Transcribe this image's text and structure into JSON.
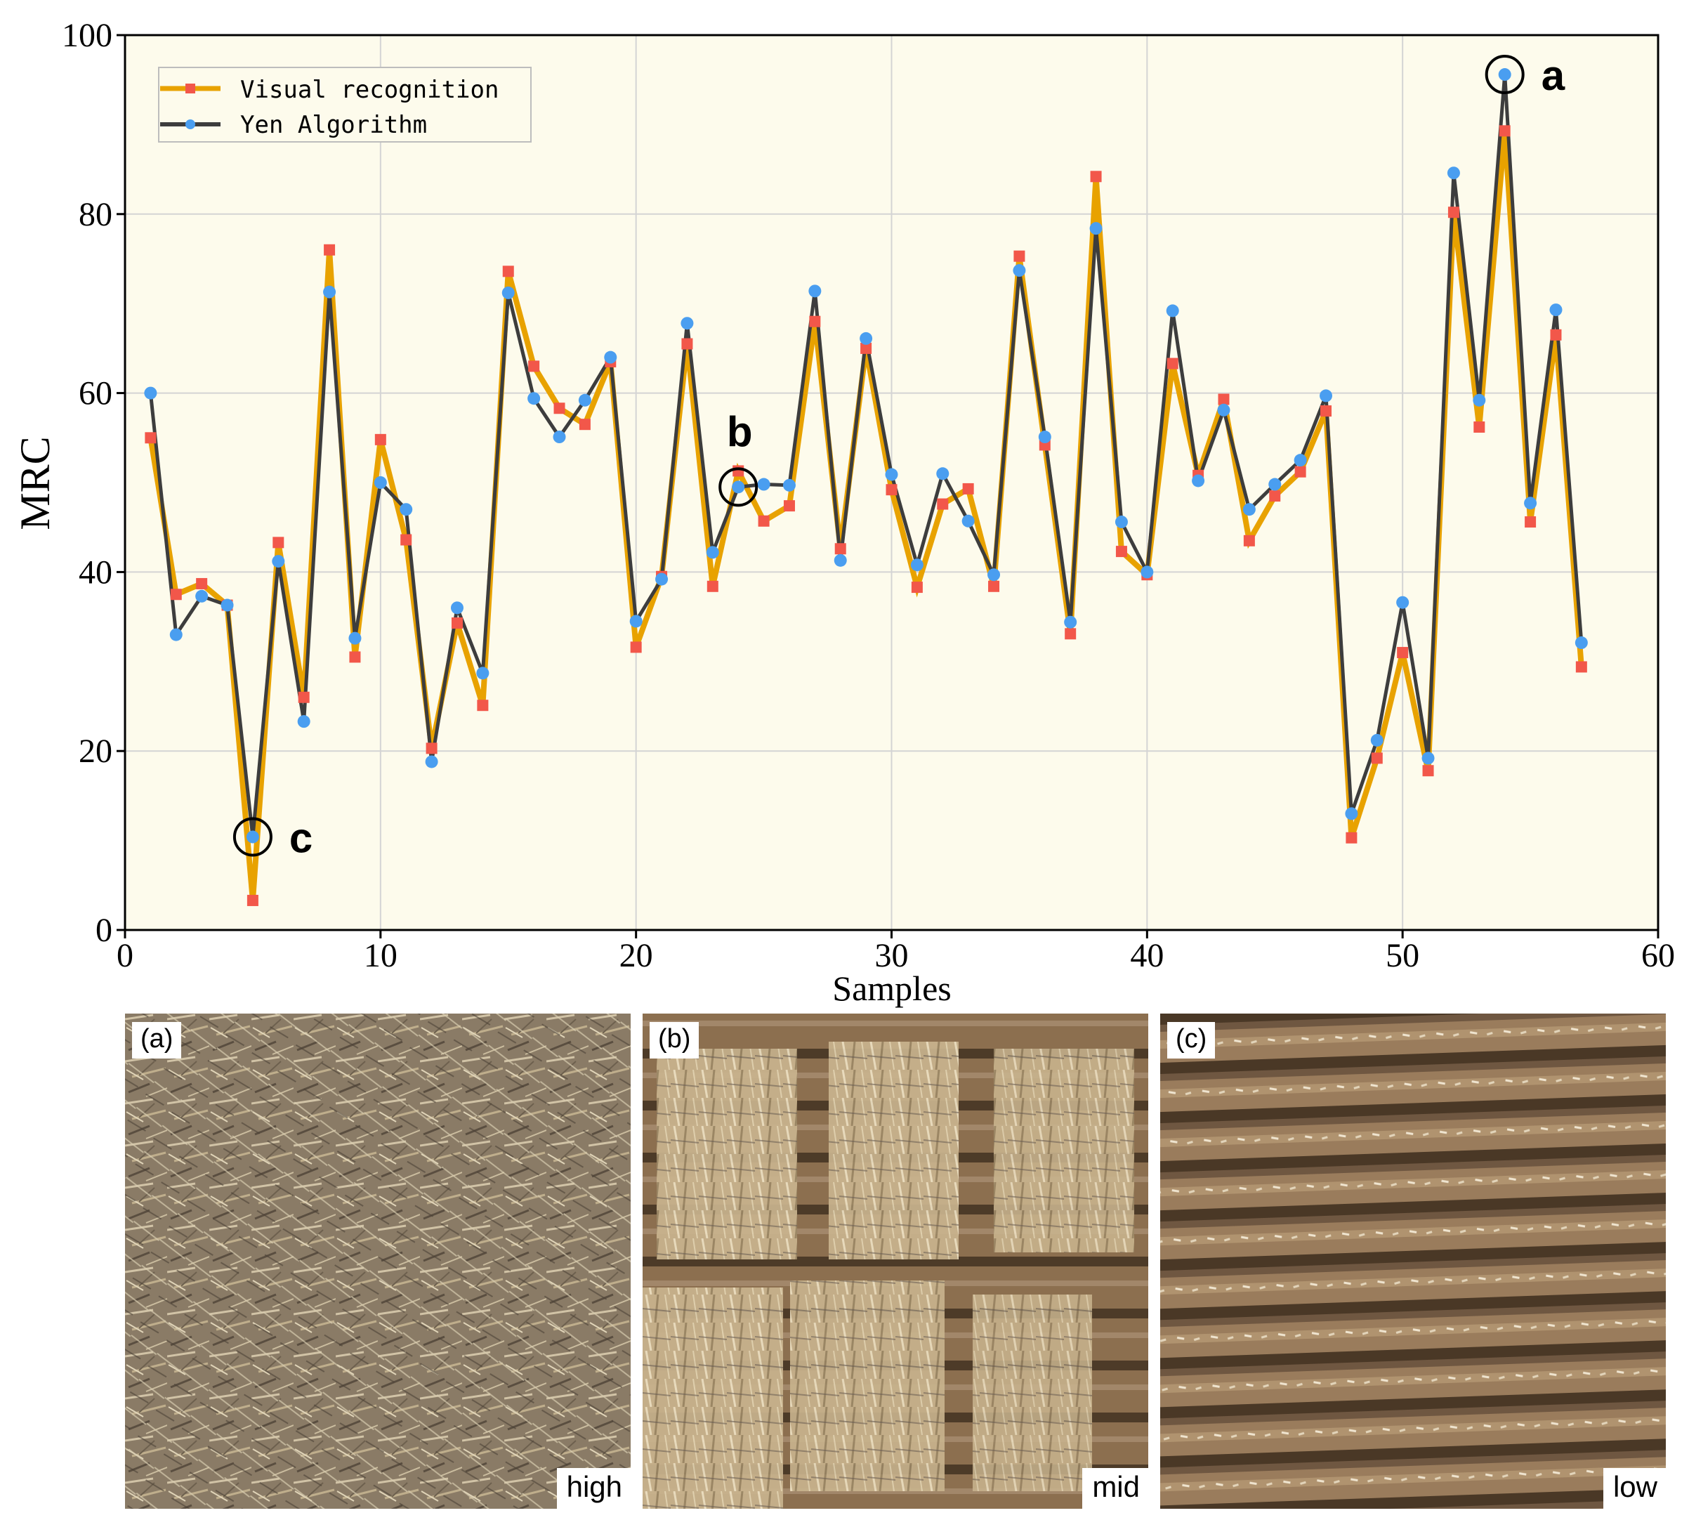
{
  "chart_data": {
    "type": "line",
    "xlabel": "Samples",
    "ylabel": "MRC",
    "xlim": [
      0,
      60
    ],
    "ylim": [
      0,
      100
    ],
    "xticks": [
      0,
      10,
      20,
      30,
      40,
      50,
      60
    ],
    "yticks": [
      0,
      20,
      40,
      60,
      80,
      100
    ],
    "grid": true,
    "legend_position": "top-left",
    "x": [
      1,
      2,
      3,
      4,
      5,
      6,
      7,
      8,
      9,
      10,
      11,
      12,
      13,
      14,
      15,
      16,
      17,
      18,
      19,
      20,
      21,
      22,
      23,
      24,
      25,
      26,
      27,
      28,
      29,
      30,
      31,
      32,
      33,
      34,
      35,
      36,
      37,
      38,
      39,
      40,
      41,
      42,
      43,
      44,
      45,
      46,
      47,
      48,
      49,
      50,
      51,
      52,
      53,
      54,
      55,
      56,
      57
    ],
    "series": [
      {
        "name": "Visual recognition",
        "color": "#e8a200",
        "marker_color": "#f2574a",
        "marker": "square",
        "values": [
          55,
          37.5,
          38.7,
          36.3,
          3.3,
          43.3,
          26,
          76,
          30.5,
          54.8,
          43.6,
          20.3,
          34.3,
          25.1,
          73.6,
          63,
          58.3,
          56.5,
          63.5,
          31.6,
          39.5,
          65.5,
          38.4,
          51.3,
          45.7,
          47.4,
          68,
          42.6,
          65,
          49.2,
          38.3,
          47.6,
          49.3,
          38.4,
          75.3,
          54.2,
          33.1,
          84.2,
          42.3,
          39.7,
          63.3,
          50.8,
          59.3,
          43.5,
          48.5,
          51.2,
          58,
          10.3,
          19.2,
          31,
          17.8,
          80.2,
          56.2,
          89.3,
          45.6,
          66.5,
          29.4
        ]
      },
      {
        "name": "Yen Algorithm",
        "color": "#3d3d3d",
        "marker_color": "#4a9ef0",
        "marker": "circle",
        "values": [
          60,
          33,
          37.3,
          36.3,
          10.4,
          41.2,
          23.3,
          71.3,
          32.6,
          50,
          47,
          18.8,
          36,
          28.7,
          71.2,
          59.4,
          55.1,
          59.2,
          64,
          34.5,
          39.2,
          67.8,
          42.2,
          49.5,
          49.8,
          49.7,
          71.4,
          41.3,
          66.1,
          50.9,
          40.8,
          51,
          45.7,
          39.7,
          73.7,
          55.1,
          34.4,
          78.4,
          45.6,
          40,
          69.2,
          50.2,
          58.1,
          47,
          49.8,
          52.5,
          59.7,
          13,
          21.2,
          36.6,
          19.2,
          84.6,
          59.2,
          95.6,
          47.7,
          69.3,
          32.1
        ]
      }
    ],
    "annotations": [
      {
        "label": "a",
        "x": 54,
        "y": 95.6
      },
      {
        "label": "b",
        "x": 24,
        "y": 49.5
      },
      {
        "label": "c",
        "x": 5,
        "y": 10.4
      }
    ]
  },
  "photos": [
    {
      "label": "(a)",
      "level": "high"
    },
    {
      "label": "(b)",
      "level": "mid"
    },
    {
      "label": "(c)",
      "level": "low"
    }
  ]
}
